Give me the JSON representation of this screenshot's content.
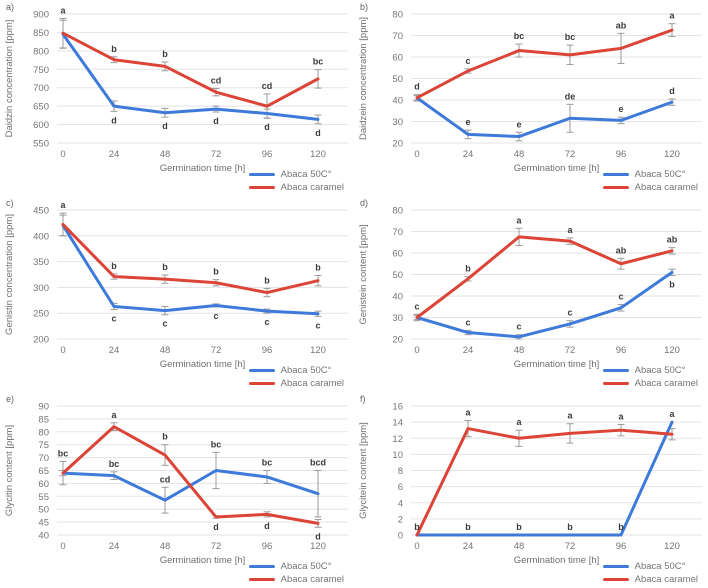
{
  "style": {
    "background": "#ffffff",
    "grid_color": "#e3e3e3",
    "tick_text_color": "#757575",
    "axis_title_color": "#6f6f6f",
    "letter_color": "#3a3a3a",
    "error_bar_color": "#9b9b9b"
  },
  "legend": {
    "items": [
      {
        "label": "Abaca 50C°",
        "color": "#3d7ad9"
      },
      {
        "label": "Abaca caramel",
        "color": "#db4437"
      }
    ]
  },
  "chart_data": [
    {
      "type": "line",
      "panel_label": "a)",
      "ylabel": "Daidzin concentration [ppm]",
      "xlabel": "Germination time [h]",
      "x": [
        0,
        24,
        48,
        72,
        96,
        120
      ],
      "ylim": [
        550,
        900
      ],
      "ystep": 50,
      "grid": true,
      "legend_position": "bottom-right",
      "series": [
        {
          "name": "Abaca 50C°",
          "color": "#3d7ad9",
          "values": [
            845,
            650,
            632,
            642,
            630,
            614
          ],
          "errors": [
            38,
            14,
            12,
            8,
            12,
            12
          ],
          "letters": [
            "",
            "d",
            "d",
            "d",
            "d",
            "d"
          ],
          "letter_sides": [
            "above",
            "below",
            "below",
            "below",
            "below",
            "below"
          ]
        },
        {
          "name": "Abaca caramel",
          "color": "#db4437",
          "values": [
            848,
            776,
            758,
            688,
            650,
            724
          ],
          "errors": [
            40,
            8,
            12,
            10,
            33,
            25
          ],
          "letters": [
            "a",
            "b",
            "b",
            "cd",
            "cd",
            "bc"
          ],
          "letter_sides": [
            "above",
            "above",
            "above",
            "above",
            "above",
            "above"
          ]
        }
      ]
    },
    {
      "type": "line",
      "panel_label": "b)",
      "ylabel": "Daidzein concentration [ppm]",
      "xlabel": "Germination time [h]",
      "x": [
        0,
        24,
        48,
        72,
        96,
        120
      ],
      "ylim": [
        20,
        80
      ],
      "ystep": 10,
      "grid": true,
      "legend_position": "bottom-right",
      "series": [
        {
          "name": "Abaca 50C°",
          "color": "#3d7ad9",
          "values": [
            41,
            24,
            23,
            31.5,
            30.5,
            39
          ],
          "errors": [
            1.5,
            2,
            2,
            6.5,
            1.5,
            1.5
          ],
          "letters": [
            "d",
            "e",
            "e",
            "de",
            "e",
            "d"
          ],
          "letter_sides": [
            "above",
            "above",
            "above",
            "above",
            "above",
            "above"
          ]
        },
        {
          "name": "Abaca caramel",
          "color": "#db4437",
          "values": [
            41,
            53.5,
            63,
            61,
            64,
            72.5
          ],
          "errors": [
            1,
            1,
            3,
            4.5,
            7,
            3
          ],
          "letters": [
            "",
            "c",
            "bc",
            "bc",
            "ab",
            "a"
          ],
          "letter_sides": [
            "above",
            "above",
            "above",
            "above",
            "above",
            "above"
          ]
        }
      ]
    },
    {
      "type": "line",
      "panel_label": "c)",
      "ylabel": "Genistin concentration [ppm]",
      "xlabel": "Germination time [h]",
      "x": [
        0,
        24,
        48,
        72,
        96,
        120
      ],
      "ylim": [
        200,
        450
      ],
      "ystep": 50,
      "grid": true,
      "legend_position": "bottom-right",
      "series": [
        {
          "name": "Abaca 50C°",
          "color": "#3d7ad9",
          "values": [
            420,
            263,
            255,
            265,
            254,
            249
          ],
          "errors": [
            20,
            6,
            8,
            3,
            4,
            5
          ],
          "letters": [
            "",
            "c",
            "c",
            "c",
            "c",
            "c"
          ],
          "letter_sides": [
            "below",
            "below",
            "below",
            "below",
            "below",
            "below"
          ]
        },
        {
          "name": "Abaca caramel",
          "color": "#db4437",
          "values": [
            422,
            321,
            316,
            309,
            290,
            313
          ],
          "errors": [
            22,
            5,
            8,
            6,
            8,
            10
          ],
          "letters": [
            "a",
            "b",
            "b",
            "b",
            "b",
            "b"
          ],
          "letter_sides": [
            "above",
            "above",
            "above",
            "above",
            "above",
            "above"
          ]
        }
      ]
    },
    {
      "type": "line",
      "panel_label": "d)",
      "ylabel": "Genistein content [ppm]",
      "xlabel": "Germination time [h]",
      "x": [
        0,
        24,
        48,
        72,
        96,
        120
      ],
      "ylim": [
        20,
        80
      ],
      "ystep": 10,
      "grid": true,
      "legend_position": "bottom-right",
      "series": [
        {
          "name": "Abaca 50C°",
          "color": "#3d7ad9",
          "values": [
            30,
            23,
            21,
            27,
            34.5,
            51
          ],
          "errors": [
            1.5,
            1,
            1,
            1.5,
            1.5,
            1.5
          ],
          "letters": [
            "c",
            "c",
            "c",
            "c",
            "c",
            "b"
          ],
          "letter_sides": [
            "above",
            "above",
            "above",
            "above",
            "above",
            "below"
          ]
        },
        {
          "name": "Abaca caramel",
          "color": "#db4437",
          "values": [
            30,
            48,
            67.5,
            65.5,
            55,
            61
          ],
          "errors": [
            1,
            1,
            4,
            1.5,
            2.5,
            1.5
          ],
          "letters": [
            "",
            "b",
            "a",
            "a",
            "ab",
            "ab"
          ],
          "letter_sides": [
            "above",
            "above",
            "above",
            "above",
            "above",
            "above"
          ]
        }
      ]
    },
    {
      "type": "line",
      "panel_label": "e)",
      "ylabel": "Glycitin content [ppm]",
      "xlabel": "Germination time [h]",
      "x": [
        0,
        24,
        48,
        72,
        96,
        120
      ],
      "ylim": [
        40,
        90
      ],
      "ystep": 5,
      "grid": true,
      "legend_position": "bottom-right",
      "series": [
        {
          "name": "Abaca 50C°",
          "color": "#3d7ad9",
          "values": [
            64,
            63,
            53.5,
            65,
            62.5,
            56
          ],
          "errors": [
            4.5,
            1.5,
            5,
            7,
            2.5,
            9
          ],
          "letters": [
            "bc",
            "bc",
            "cd",
            "bc",
            "bc",
            "bcd"
          ],
          "letter_sides": [
            "above",
            "above",
            "above",
            "above",
            "above",
            "above"
          ]
        },
        {
          "name": "Abaca caramel",
          "color": "#db4437",
          "values": [
            64,
            82,
            71,
            47,
            48,
            44.5
          ],
          "errors": [
            1,
            1.5,
            4,
            0.5,
            1,
            1.5
          ],
          "letters": [
            "",
            "a",
            "b",
            "d",
            "d",
            "d"
          ],
          "letter_sides": [
            "above",
            "above",
            "above",
            "below",
            "below",
            "below"
          ]
        }
      ]
    },
    {
      "type": "line",
      "panel_label": "f)",
      "ylabel": "Glycitein content [ppm]",
      "xlabel": "Germination time [h]",
      "x": [
        0,
        24,
        48,
        72,
        96,
        120
      ],
      "ylim": [
        0,
        16
      ],
      "ystep": 2,
      "grid": true,
      "legend_position": "bottom-right",
      "series": [
        {
          "name": "Abaca 50C°",
          "color": "#3d7ad9",
          "values": [
            0,
            0,
            0,
            0,
            0,
            14
          ],
          "errors": [
            0,
            0,
            0,
            0,
            0,
            0
          ],
          "letters": [
            "b",
            "b",
            "b",
            "b",
            "b",
            "a"
          ],
          "letter_sides": [
            "above",
            "above",
            "above",
            "above",
            "above",
            "above"
          ]
        },
        {
          "name": "Abaca caramel",
          "color": "#db4437",
          "values": [
            0,
            13.2,
            12,
            12.6,
            13,
            12.5
          ],
          "errors": [
            0,
            1,
            1,
            1.2,
            0.7,
            0.7
          ],
          "letters": [
            "",
            "a",
            "a",
            "a",
            "a",
            ""
          ],
          "letter_sides": [
            "above",
            "above",
            "above",
            "above",
            "above",
            "above"
          ]
        }
      ]
    }
  ]
}
